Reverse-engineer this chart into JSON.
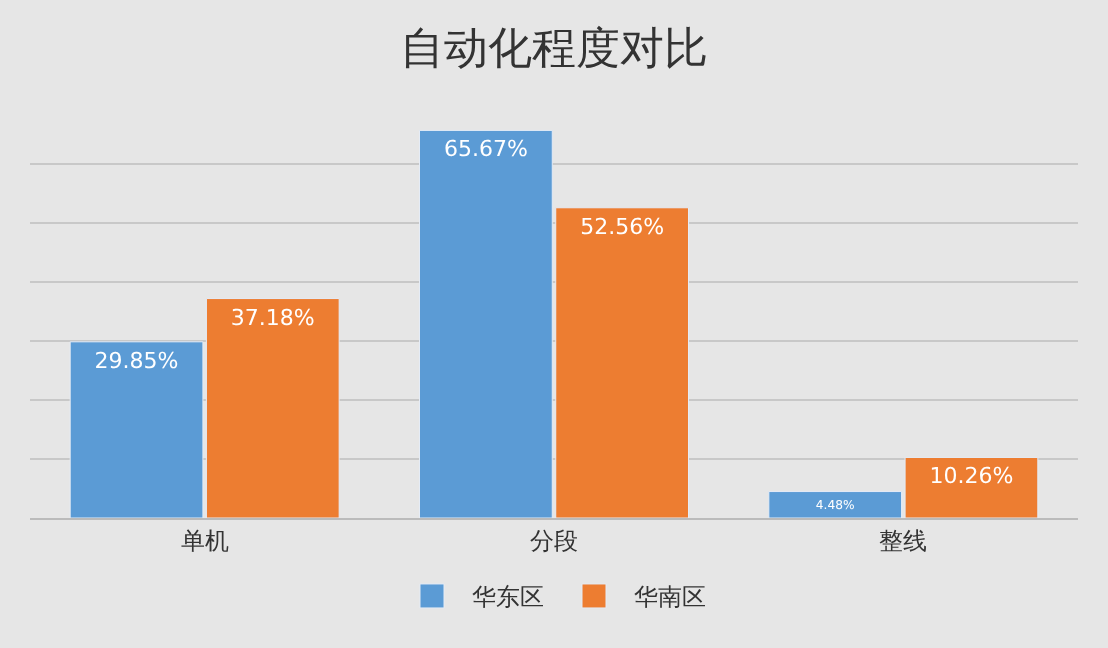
{
  "chart_data": {
    "type": "bar",
    "title": "自动化程度对比",
    "categories": [
      "单机",
      "分段",
      "整线"
    ],
    "series": [
      {
        "name": "华东区",
        "color": "#5b9bd5",
        "values": [
          29.85,
          65.67,
          4.48
        ],
        "value_labels": [
          "29.85%",
          "65.67%",
          "4.48%"
        ]
      },
      {
        "name": "华南区",
        "color": "#ed7d31",
        "values": [
          37.18,
          52.56,
          10.26
        ],
        "value_labels": [
          "37.18%",
          "52.56%",
          "10.26%"
        ]
      }
    ],
    "grid": "y",
    "legend": "bottom",
    "tick_labels": "x"
  }
}
